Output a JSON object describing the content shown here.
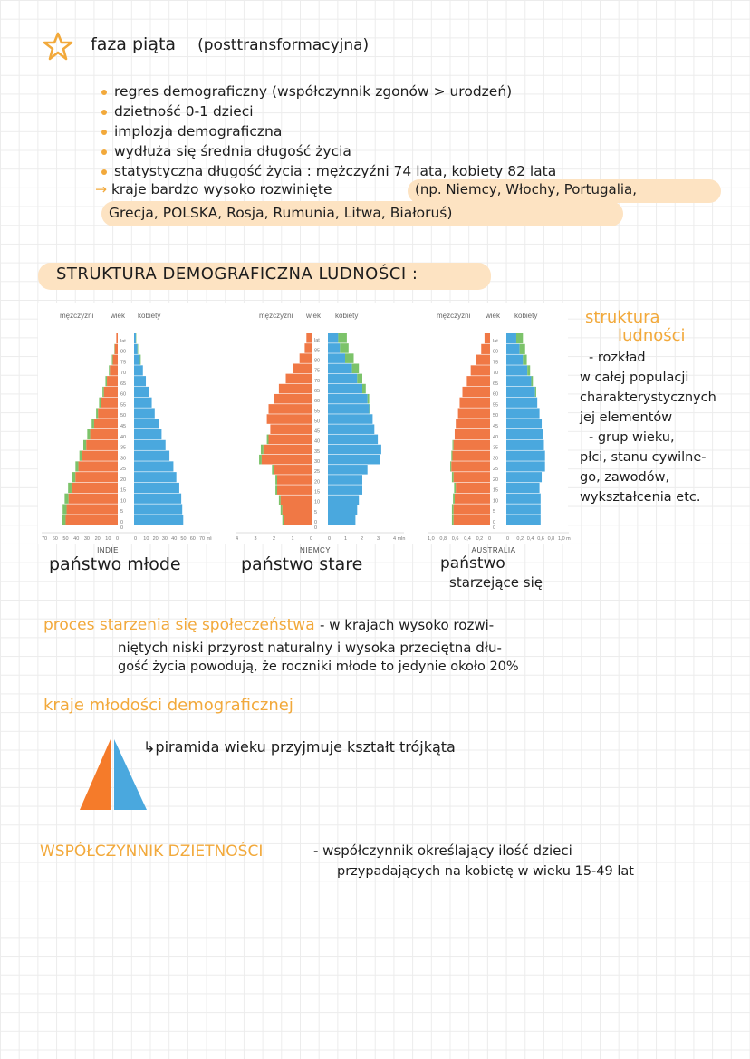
{
  "heading": {
    "title": "faza piąta",
    "subtitle": "(posttransformacyjna)"
  },
  "bullets": [
    "regres demograficzny (współczynnik zgonów > urodzeń)",
    "dzietność 0-1 dzieci",
    "implozja demograficzna",
    "wydłuża się średnia długość życia",
    "statystyczna długość życia : mężczyźni 74 lata, kobiety 82 lata"
  ],
  "countries": {
    "lead": "kraje bardzo wysoko rozwinięte",
    "examples_line1": "(np. Niemcy, Włochy, Portugalia,",
    "examples_line2": "Grecja, POLSKA, Rosja, Rumunia, Litwa, Białoruś)"
  },
  "section_title": "STRUKTURA DEMOGRAFICZNA LUDNOŚCI :",
  "side_note": {
    "title_line1": "struktura",
    "title_line2": "ludności",
    "lines": [
      "- rozkład",
      "w całej populacji",
      "charakterystycznych",
      "jej elementów",
      "- grup wieku,",
      "płci, stanu cywilne-",
      "go, zawodów,",
      "wykształcenia etc."
    ]
  },
  "pyramid_labels": {
    "men": "mężczyźni",
    "age": "wiek",
    "women": "kobiety",
    "age_ticks": [
      "lat",
      "80",
      "75",
      "70",
      "65",
      "60",
      "55",
      "50",
      "45",
      "40",
      "35",
      "30",
      "25",
      "20",
      "15",
      "10",
      "5",
      "0"
    ],
    "age_ticks_85": [
      "lat",
      "85",
      "80",
      "75",
      "70",
      "65",
      "60",
      "55",
      "50",
      "45",
      "40",
      "35",
      "30",
      "25",
      "20",
      "15",
      "10",
      "5",
      "0"
    ]
  },
  "pyramids": [
    {
      "country": "INDIE",
      "caption": "państwo młode",
      "axis_left": [
        "70",
        "60",
        "50",
        "40",
        "30",
        "20",
        "10",
        "0"
      ],
      "axis_right": [
        "0",
        "10",
        "20",
        "30",
        "40",
        "50",
        "60",
        "70 mln"
      ],
      "max": 70,
      "men": [
        1.5,
        3,
        5,
        8,
        11,
        14,
        17,
        20,
        24,
        28,
        32,
        36,
        40,
        43,
        47,
        50,
        52,
        53
      ],
      "women": [
        1.8,
        3.5,
        6,
        9,
        12,
        15,
        18,
        21,
        25,
        28,
        32,
        36,
        40,
        43,
        46,
        48,
        49,
        50
      ],
      "men_surplus": [
        0,
        0.5,
        1,
        1,
        1.5,
        1.5,
        2,
        2,
        2.5,
        3,
        3,
        3,
        3,
        3.5,
        3.5,
        4,
        4,
        4
      ],
      "women_surplus": [
        0.4,
        0.6,
        0.8,
        0,
        0,
        0,
        0,
        0,
        0,
        0,
        0,
        0,
        0,
        0,
        0,
        0,
        0,
        0
      ]
    },
    {
      "country": "NIEMCY",
      "caption": "państwo stare",
      "axis_left": [
        "4",
        "3",
        "2",
        "1",
        "0"
      ],
      "axis_right": [
        "0",
        "1",
        "2",
        "3",
        "4 mln"
      ],
      "max": 4,
      "men": [
        0.3,
        0.4,
        0.7,
        1.1,
        1.5,
        1.9,
        2.2,
        2.5,
        2.6,
        2.4,
        2.5,
        2.8,
        2.9,
        2.2,
        2.0,
        2.0,
        1.8,
        1.7,
        1.6
      ],
      "women": [
        0.6,
        0.7,
        1.0,
        1.4,
        1.7,
        2.0,
        2.3,
        2.4,
        2.6,
        2.7,
        2.9,
        3.1,
        3.0,
        2.3,
        2.0,
        2.0,
        1.8,
        1.7,
        1.6
      ],
      "men_surplus": [
        0,
        0,
        0,
        0,
        0,
        0,
        0,
        0,
        0,
        0,
        0.1,
        0.15,
        0.15,
        0.1,
        0.1,
        0.1,
        0.1,
        0.1,
        0.1
      ],
      "women_surplus": [
        0.5,
        0.5,
        0.5,
        0.4,
        0.3,
        0.2,
        0.1,
        0.05,
        0,
        0,
        0,
        0,
        0,
        0,
        0,
        0,
        0,
        0,
        0
      ]
    },
    {
      "country": "AUSTRALIA",
      "caption_line1": "państwo",
      "caption_line2": "starzejące się",
      "axis_left": [
        "1,0",
        "0,8",
        "0,6",
        "0,4",
        "0,2",
        "0"
      ],
      "axis_right": [
        "0",
        "0,2",
        "0,4",
        "0,6",
        "0,8",
        "1,0 mln"
      ],
      "max": 1.0,
      "men": [
        0.1,
        0.16,
        0.25,
        0.35,
        0.42,
        0.5,
        0.55,
        0.58,
        0.62,
        0.64,
        0.66,
        0.68,
        0.7,
        0.66,
        0.62,
        0.64,
        0.66,
        0.66
      ],
      "women": [
        0.18,
        0.24,
        0.3,
        0.38,
        0.45,
        0.52,
        0.56,
        0.6,
        0.64,
        0.66,
        0.68,
        0.7,
        0.7,
        0.64,
        0.6,
        0.62,
        0.62,
        0.62
      ],
      "men_surplus": [
        0,
        0,
        0,
        0,
        0,
        0,
        0,
        0,
        0,
        0,
        0.02,
        0.02,
        0.02,
        0.03,
        0.03,
        0.03,
        0.03,
        0.03
      ],
      "women_surplus": [
        0.12,
        0.1,
        0.07,
        0.05,
        0.03,
        0.02,
        0,
        0,
        0,
        0,
        0,
        0,
        0,
        0,
        0,
        0,
        0,
        0
      ]
    }
  ],
  "aging": {
    "term": "proces starzenia się społeczeństwa",
    "line1_rest": "- w krajach wysoko rozwi-",
    "line2": "niętych niski przyrost naturalny i wysoka przeciętna dłu-",
    "line3": "gość życia powodują, że roczniki młode to jedynie około 20%"
  },
  "youth": {
    "term": "kraje młodości demograficznej",
    "note": "↳piramida wieku przyjmuje kształt trójkąta"
  },
  "fertility": {
    "term": "WSPÓŁCZYNNIK DZIETNOŚCI",
    "line1": "- współczynnik określający ilość dzieci",
    "line2": "przypadających na kobietę w wieku 15-49 lat"
  },
  "colors": {
    "accent": "#f2a93b",
    "highlight": "#fde3c2",
    "men": "#f07845",
    "women": "#4aa8de",
    "surplus": "#7cc36a"
  }
}
